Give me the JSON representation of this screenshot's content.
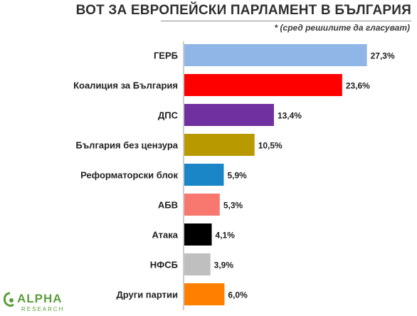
{
  "title": "ВОТ ЗА ЕВРОПЕЙСКИ ПАРЛАМЕНТ В БЪЛГАРИЯ",
  "subtitle": "* (сред решилите да гласуват)",
  "logo": {
    "main": "ALPHA",
    "sub": "RESEARCH"
  },
  "chart_data": {
    "type": "bar",
    "orientation": "horizontal",
    "categories": [
      "ГЕРБ",
      "Коалиция за България",
      "ДПС",
      "България без цензура",
      "Реформаторски блок",
      "АБВ",
      "Атака",
      "НФСБ",
      "Други партии"
    ],
    "values": [
      27.3,
      23.6,
      13.4,
      10.5,
      5.9,
      5.3,
      4.1,
      3.9,
      6.0
    ],
    "labels": [
      "27,3%",
      "23,6%",
      "13,4%",
      "10,5%",
      "5,9%",
      "5,3%",
      "4,1%",
      "3,9%",
      "6,0%"
    ],
    "colors": [
      "#8fb6e6",
      "#ff0000",
      "#7030a0",
      "#b89a00",
      "#1a86c7",
      "#f87870",
      "#000000",
      "#bfbfbf",
      "#ff8000"
    ],
    "unit": "%",
    "xlim": [
      0,
      30
    ]
  }
}
